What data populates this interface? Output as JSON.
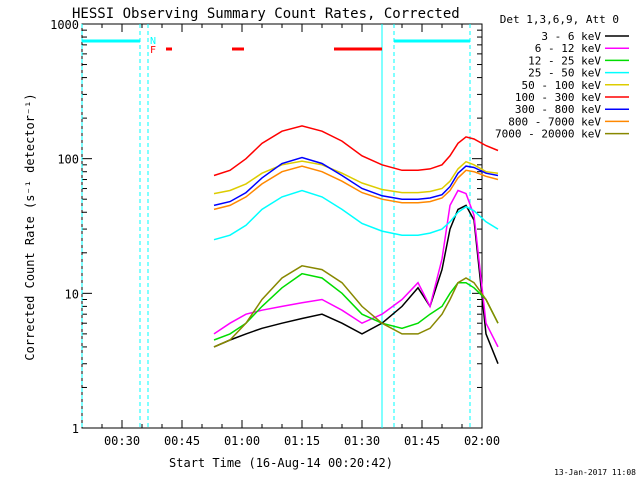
{
  "chart_data": {
    "type": "line",
    "title": "HESSI Observing Summary Count Rates, Corrected",
    "xlabel": "Start Time (16-Aug-14 00:20:42)",
    "ylabel": "Corrected Count Rate (s⁻¹ detector⁻¹)",
    "yscale": "log",
    "ylim": [
      1,
      1000
    ],
    "xlim": [
      "00:20",
      "02:00"
    ],
    "x_ticks": [
      "00:30",
      "00:45",
      "01:00",
      "01:15",
      "01:30",
      "01:45",
      "02:00"
    ],
    "y_ticks": [
      "1",
      "10",
      "100",
      "1000"
    ],
    "legend_title": "Det 1,3,6,9, Att 0",
    "legend_position": "right",
    "grid": false,
    "annotations": [
      {
        "label": "N",
        "color": "#00ffff"
      },
      {
        "label": "F",
        "color": "#ff0000"
      }
    ],
    "x_minutes": [
      33,
      37,
      41,
      45,
      50,
      55,
      60,
      65,
      70,
      75,
      80,
      84,
      87,
      90,
      92,
      94,
      96,
      98,
      101,
      104
    ],
    "series": [
      {
        "name": "3 - 6 keV",
        "color": "#000000",
        "values": [
          4,
          4.5,
          5,
          5.5,
          6,
          6.5,
          7,
          6,
          5,
          6,
          8,
          11,
          8,
          15,
          30,
          42,
          45,
          35,
          5,
          3
        ]
      },
      {
        "name": "6 - 12 keV",
        "color": "#ff00ff",
        "values": [
          5,
          6,
          7,
          7.5,
          8,
          8.5,
          9,
          7.5,
          6,
          7,
          9,
          12,
          8,
          18,
          45,
          58,
          55,
          38,
          6,
          4
        ]
      },
      {
        "name": "12 - 25 keV",
        "color": "#00dd00",
        "values": [
          4.5,
          5,
          6,
          8,
          11,
          14,
          13,
          10,
          7,
          6,
          5.5,
          6,
          7,
          8,
          10,
          12,
          12,
          11,
          9,
          6
        ]
      },
      {
        "name": "25 - 50 keV",
        "color": "#00ffff",
        "values": [
          25,
          27,
          32,
          42,
          52,
          58,
          52,
          42,
          33,
          29,
          27,
          27,
          28,
          30,
          34,
          40,
          44,
          41,
          34,
          30
        ]
      },
      {
        "name": "50 - 100 keV",
        "color": "#ddcc00",
        "values": [
          55,
          58,
          65,
          78,
          90,
          96,
          90,
          78,
          66,
          59,
          56,
          56,
          57,
          60,
          68,
          84,
          95,
          90,
          80,
          78
        ]
      },
      {
        "name": "100 - 300 keV",
        "color": "#ff0000",
        "values": [
          75,
          82,
          100,
          130,
          160,
          175,
          160,
          135,
          105,
          90,
          82,
          82,
          84,
          90,
          105,
          130,
          145,
          140,
          125,
          115
        ]
      },
      {
        "name": "300 - 800 keV",
        "color": "#0000ff",
        "values": [
          45,
          48,
          56,
          72,
          92,
          102,
          92,
          75,
          60,
          53,
          50,
          50,
          51,
          54,
          62,
          78,
          88,
          86,
          78,
          75
        ]
      },
      {
        "name": "800 - 7000 keV",
        "color": "#ff8800",
        "values": [
          42,
          45,
          52,
          65,
          80,
          88,
          80,
          68,
          56,
          50,
          47,
          47,
          48,
          51,
          58,
          72,
          82,
          80,
          74,
          70
        ]
      },
      {
        "name": "7000 - 20000 keV",
        "color": "#888800",
        "values": [
          4,
          4.5,
          6,
          9,
          13,
          16,
          15,
          12,
          8,
          6,
          5,
          5,
          5.5,
          7,
          9,
          12,
          13,
          12,
          9,
          6
        ]
      }
    ],
    "footer": "13-Jan-2017 11:08"
  }
}
